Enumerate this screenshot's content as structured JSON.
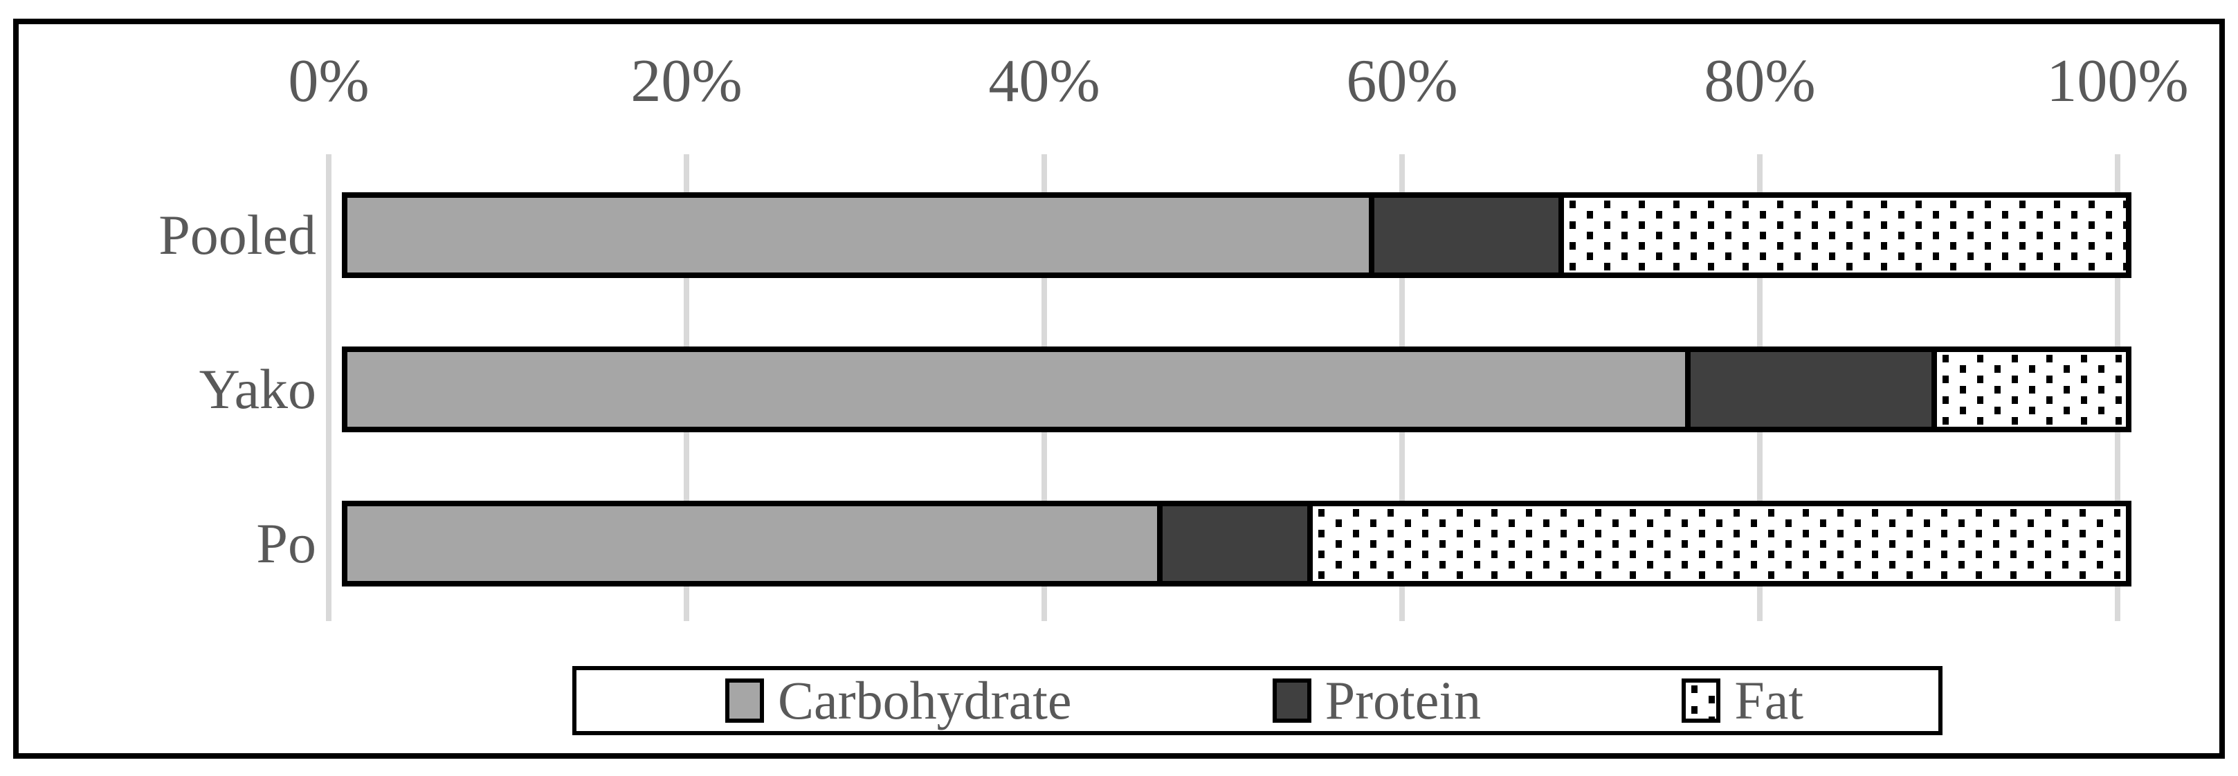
{
  "chart_data": {
    "type": "bar",
    "subtype": "stacked-horizontal",
    "title": "",
    "categories": [
      "Pooled",
      "Yako",
      "Po"
    ],
    "series": [
      {
        "name": "Carbohydrate",
        "pattern": "solid",
        "color": "#a6a6a6",
        "values": [
          57.8,
          75.7,
          45.8
        ]
      },
      {
        "name": "Protein",
        "pattern": "solid",
        "color": "#404040",
        "values": [
          10.4,
          13.6,
          8.2
        ]
      },
      {
        "name": "Fat",
        "pattern": "dotted",
        "color": "#ffffff",
        "dot_color": "#000000",
        "values": [
          31.8,
          10.7,
          46.0
        ]
      }
    ],
    "x_axis": {
      "ticks": [
        "0%",
        "20%",
        "40%",
        "60%",
        "80%",
        "100%"
      ],
      "range": [
        0,
        100
      ],
      "position": "top"
    },
    "grid": "vertical",
    "legend_position": "bottom",
    "colors": {
      "gridline": "#d9d9d9",
      "text": "#595959",
      "bar_border": "#000000",
      "frame_border": "#000000",
      "background": "#ffffff"
    }
  }
}
